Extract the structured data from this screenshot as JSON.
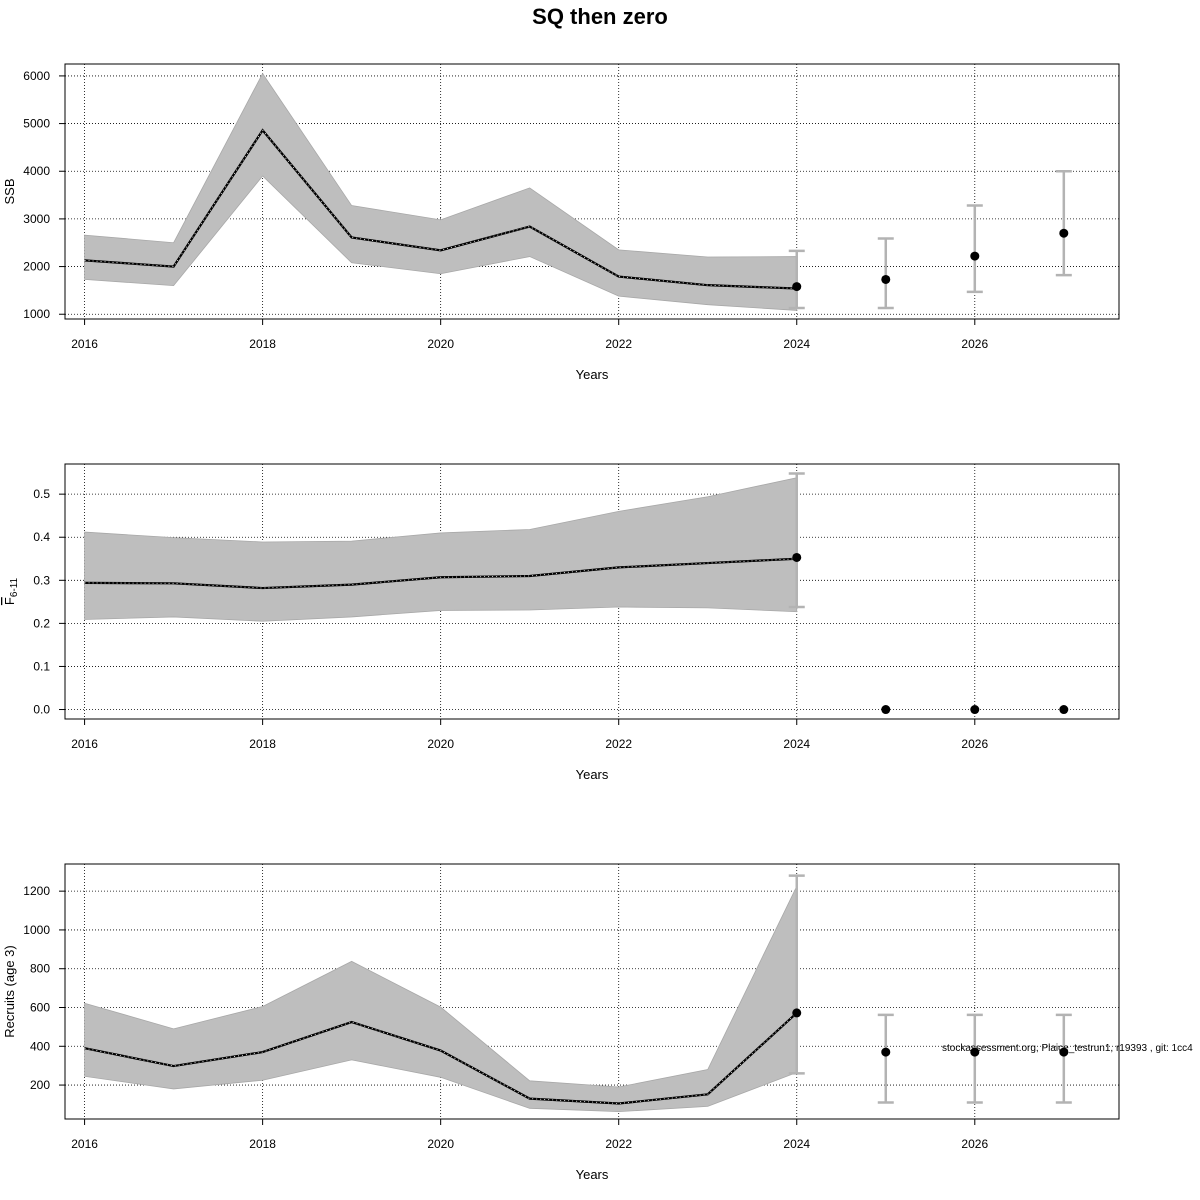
{
  "figure": {
    "title": "SQ then zero",
    "footnote": "stockassessment.org, Plaice_testrun1, r19393 , git: 1cc4"
  },
  "chart_data": [
    {
      "type": "line",
      "title": "",
      "xlabel": "Years",
      "ylabel": "SSB",
      "ylabel_sub": "",
      "xlim": [
        2015.78,
        2027.62
      ],
      "ylim": [
        900,
        6250
      ],
      "x_ticks": [
        2016,
        2018,
        2020,
        2022,
        2024,
        2026
      ],
      "y_ticks": [
        1000,
        2000,
        3000,
        4000,
        5000,
        6000
      ],
      "y_tick_labels": [
        "1000",
        "2000",
        "3000",
        "4000",
        "5000",
        "6000"
      ],
      "grid": true,
      "series": [
        {
          "x": [
            2016,
            2017,
            2018,
            2019,
            2020,
            2021,
            2022,
            2023,
            2024
          ],
          "estimate": [
            2130,
            2000,
            4860,
            2610,
            2340,
            2840,
            1790,
            1610,
            1540
          ],
          "lower": [
            1730,
            1600,
            3900,
            2080,
            1850,
            2210,
            1380,
            1200,
            1080
          ],
          "upper": [
            2660,
            2500,
            6050,
            3280,
            2980,
            3650,
            2350,
            2200,
            2210
          ]
        }
      ],
      "forecast": {
        "x": [
          2024,
          2025,
          2026,
          2027
        ],
        "median": [
          1580,
          1730,
          2220,
          2700
        ],
        "lower": [
          1130,
          1130,
          1470,
          1820
        ],
        "upper": [
          2330,
          2590,
          3280,
          4000
        ]
      }
    },
    {
      "type": "line",
      "title": "",
      "xlabel": "Years",
      "ylabel": "F",
      "ylabel_sub": "6-11",
      "xlim": [
        2015.78,
        2027.62
      ],
      "ylim": [
        -0.022,
        0.57
      ],
      "x_ticks": [
        2016,
        2018,
        2020,
        2022,
        2024,
        2026
      ],
      "y_ticks": [
        0,
        0.1,
        0.2,
        0.3,
        0.4,
        0.5
      ],
      "y_tick_labels": [
        "0.0",
        "0.1",
        "0.2",
        "0.3",
        "0.4",
        "0.5"
      ],
      "grid": true,
      "series": [
        {
          "x": [
            2016,
            2017,
            2018,
            2019,
            2020,
            2021,
            2022,
            2023,
            2024
          ],
          "estimate": [
            0.294,
            0.293,
            0.282,
            0.29,
            0.307,
            0.31,
            0.33,
            0.34,
            0.35
          ],
          "lower": [
            0.209,
            0.215,
            0.205,
            0.215,
            0.23,
            0.231,
            0.238,
            0.236,
            0.227
          ],
          "upper": [
            0.412,
            0.399,
            0.389,
            0.391,
            0.41,
            0.418,
            0.46,
            0.494,
            0.538
          ]
        }
      ],
      "forecast": {
        "x": [
          2024,
          2025,
          2026,
          2027
        ],
        "median": [
          0.353,
          0,
          0,
          0
        ],
        "lower": [
          0.238,
          0,
          0,
          0
        ],
        "upper": [
          0.548,
          0,
          0,
          0
        ]
      }
    },
    {
      "type": "line",
      "title": "",
      "xlabel": "Years",
      "ylabel": "Recruits (age 3)",
      "ylabel_sub": "",
      "xlim": [
        2015.78,
        2027.62
      ],
      "ylim": [
        25,
        1340
      ],
      "x_ticks": [
        2016,
        2018,
        2020,
        2022,
        2024,
        2026
      ],
      "y_ticks": [
        200,
        400,
        600,
        800,
        1000,
        1200
      ],
      "y_tick_labels": [
        "200",
        "400",
        "600",
        "800",
        "1000",
        "1200"
      ],
      "grid": true,
      "series": [
        {
          "x": [
            2016,
            2017,
            2018,
            2019,
            2020,
            2021,
            2022,
            2023,
            2024
          ],
          "estimate": [
            390,
            298,
            370,
            525,
            378,
            130,
            105,
            152,
            572
          ],
          "lower": [
            245,
            180,
            225,
            330,
            240,
            80,
            63,
            90,
            265
          ],
          "upper": [
            622,
            490,
            605,
            838,
            602,
            222,
            190,
            280,
            1225
          ]
        }
      ],
      "forecast": {
        "x": [
          2024,
          2025,
          2026,
          2027
        ],
        "median": [
          572,
          370,
          370,
          370
        ],
        "lower": [
          260,
          110,
          110,
          110
        ],
        "upper": [
          1280,
          562,
          562,
          562
        ]
      }
    }
  ],
  "colors": {
    "band": "#bebebe",
    "line": "#000000",
    "errorbar": "#b3b3b3",
    "grid": "#000000"
  }
}
